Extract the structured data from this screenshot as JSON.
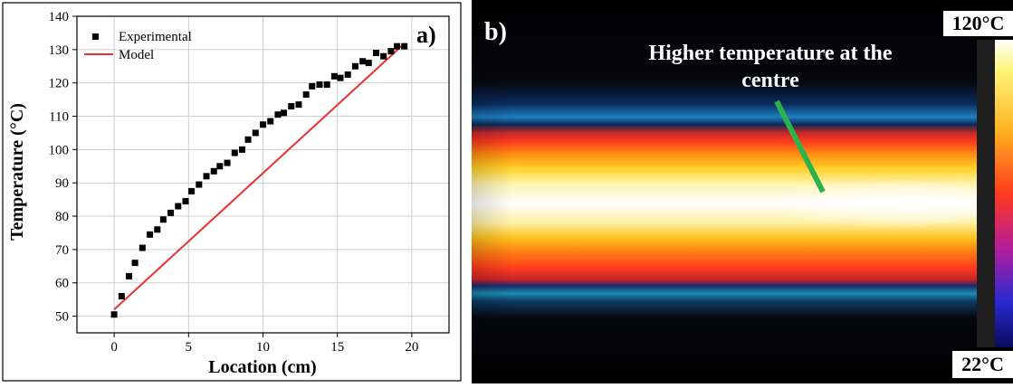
{
  "chart_data": [
    {
      "type": "scatter",
      "panel_label": "a)",
      "xlabel": "Location (cm)",
      "ylabel": "Temperature (°C)",
      "xlim": [
        -2.5,
        22.5
      ],
      "ylim": [
        45,
        140
      ],
      "xticks": [
        0,
        5,
        10,
        15,
        20
      ],
      "yticks": [
        50,
        60,
        70,
        80,
        90,
        100,
        110,
        120,
        130,
        140
      ],
      "grid": true,
      "legend_position": "top-left",
      "series": [
        {
          "name": "Experimental",
          "marker": "square",
          "color": "#000000",
          "x": [
            0,
            0.5,
            1.0,
            1.4,
            1.9,
            2.4,
            2.9,
            3.3,
            3.8,
            4.3,
            4.8,
            5.2,
            5.7,
            6.2,
            6.7,
            7.1,
            7.6,
            8.1,
            8.6,
            9.0,
            9.5,
            10.0,
            10.5,
            11.0,
            11.4,
            11.9,
            12.4,
            12.9,
            13.3,
            13.8,
            14.3,
            14.8,
            15.2,
            15.7,
            16.2,
            16.7,
            17.1,
            17.6,
            18.1,
            18.6,
            19.0,
            19.5
          ],
          "y": [
            50.5,
            56,
            62,
            66,
            70.5,
            74.5,
            76,
            79,
            81,
            83,
            84.5,
            87.5,
            89.5,
            92,
            93.5,
            95,
            96,
            99,
            100,
            103,
            105,
            107.5,
            108.5,
            110.5,
            111,
            113,
            113.5,
            116.5,
            119,
            119.5,
            119.5,
            122,
            121.5,
            122.5,
            125,
            126.5,
            126,
            129,
            128,
            129.5,
            131,
            131
          ]
        },
        {
          "name": "Model",
          "color": "#e8322f",
          "x": [
            0,
            19.3
          ],
          "y": [
            52,
            131
          ]
        }
      ]
    },
    {
      "type": "heatmap",
      "panel_label": "b)",
      "annotation": "Higher temperature at the centre",
      "scale_max": "120°C",
      "scale_min": "22°C"
    }
  ]
}
